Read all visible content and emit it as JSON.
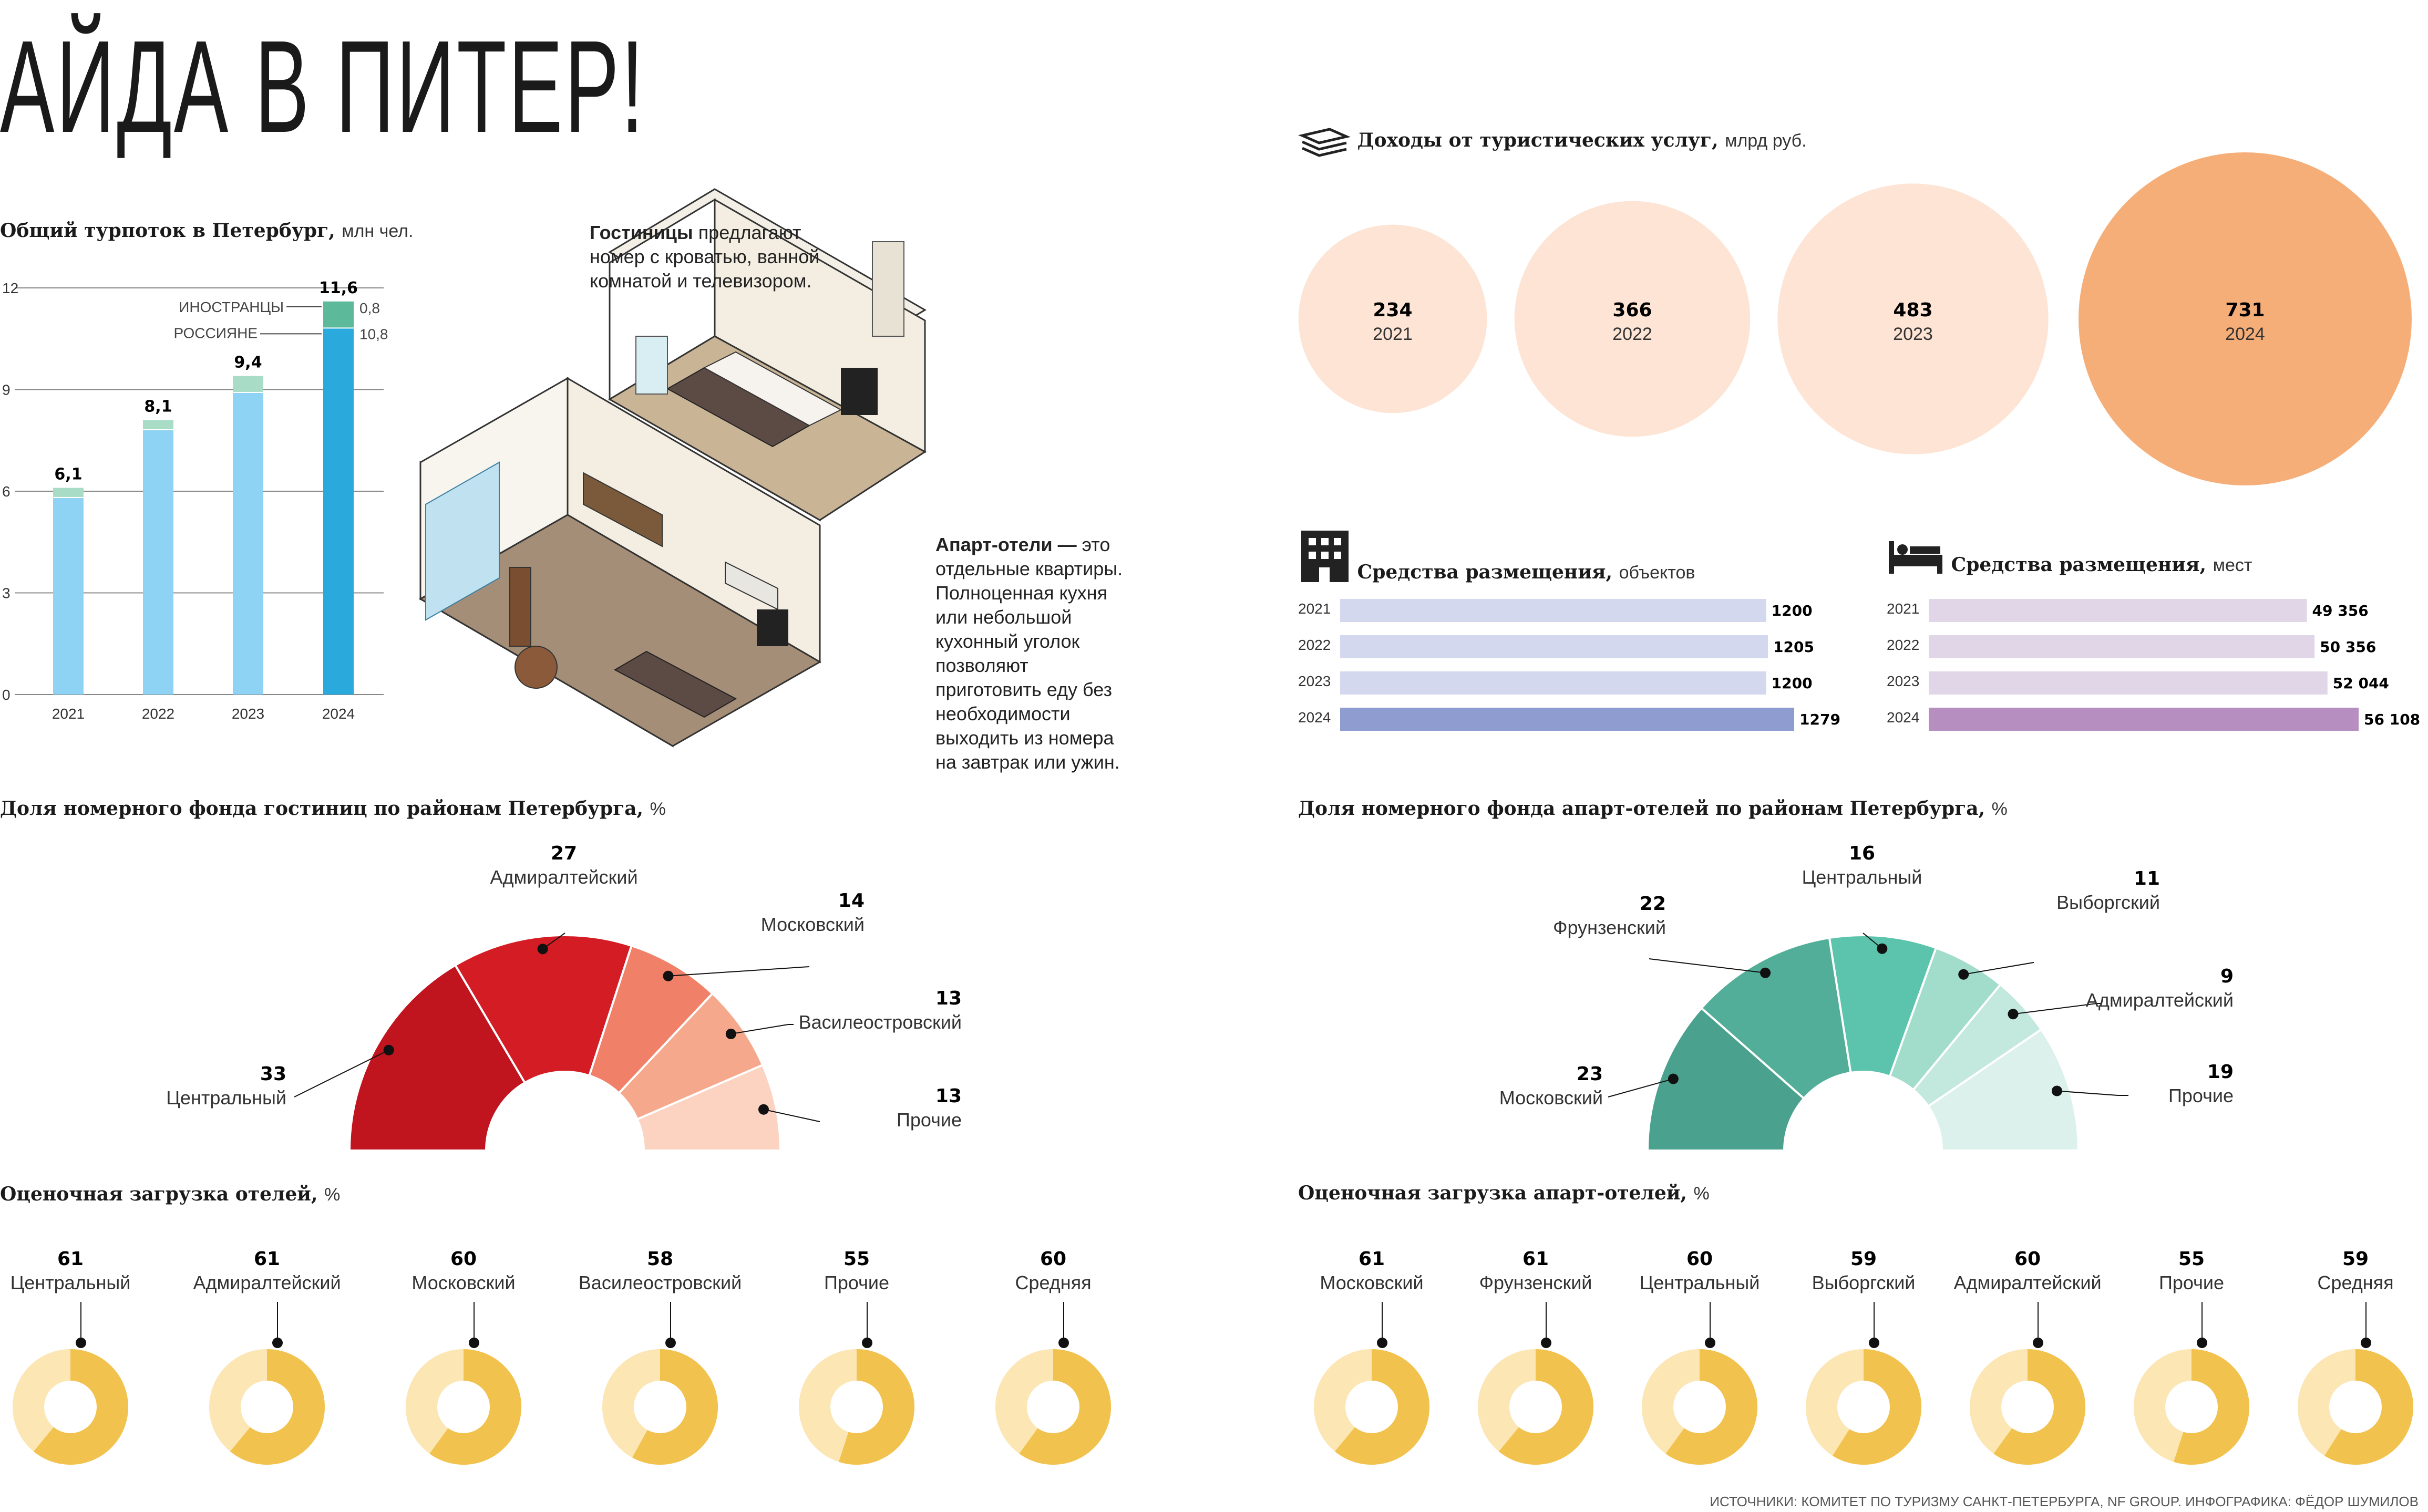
{
  "title": "АЙДА В ПИТЕР!",
  "turnover": {
    "title": "Общий турпоток в Петербург,",
    "unit": "млн чел.",
    "foreign_label": "ИНОСТРАНЦЫ",
    "russian_label": "РОССИЯНЕ",
    "foreign_value": "0,8",
    "russian_value": "10,8",
    "total_labels": [
      "6,1",
      "8,1",
      "9,4",
      "11,6"
    ]
  },
  "hotels_desc": {
    "title": "Гостиницы",
    "text": "предлагают номер с кроватью, ванной комнатой и телевизором."
  },
  "apart_desc": {
    "title": "Апарт-отели —",
    "text": "это отдельные квартиры. Полноценная кухня или небольшой кухонный уголок позволяют приготовить еду без необходимости выходить из номера на завтрак или ужин."
  },
  "income": {
    "title": "Доходы от туристических услуг,",
    "unit": "млрд руб.",
    "icon": "money-icon",
    "items": [
      {
        "value": "234",
        "year": "2021"
      },
      {
        "value": "366",
        "year": "2022"
      },
      {
        "value": "483",
        "year": "2023"
      },
      {
        "value": "731",
        "year": "2024"
      }
    ]
  },
  "accommodation_objects": {
    "title": "Средства размещения,",
    "unit": "объектов",
    "icon": "building-icon",
    "labels": [
      "1200",
      "1205",
      "1200",
      "1279"
    ]
  },
  "accommodation_places": {
    "title": "Средства размещения,",
    "unit": "мест",
    "icon": "bed-icon",
    "labels": [
      "49 356",
      "50 356",
      "52 044",
      "56 108"
    ]
  },
  "hotel_share": {
    "title": "Доля номерного фонда гостиниц по районам Петербурга,",
    "unit": "%"
  },
  "apart_share": {
    "title": "Доля номерного фонда апарт-отелей по районам Петербурга,",
    "unit": "%"
  },
  "hotel_load": {
    "title": "Оценочная загрузка отелей,",
    "unit": "%"
  },
  "apart_load": {
    "title": "Оценочная загрузка апарт-отелей,",
    "unit": "%"
  },
  "source": "ИСТОЧНИКИ: КОМИТЕТ ПО ТУРИЗМУ САНКТ-ПЕТЕРБУРГА, NF GROUP. ИНФОГРАФИКА: ФЁДОР ШУМИЛОВ",
  "colors": {
    "russian": "#8fd3f4",
    "russian_2024": "#2aa9dc",
    "foreign": "#a8dcc6",
    "foreign_2024": "#5cb99a",
    "hotel_reds": [
      "#c0141e",
      "#d41c24",
      "#f08068",
      "#f6a88c",
      "#fcd2c0"
    ],
    "apart_greens": [
      "#4aa28e",
      "#52ae98",
      "#5cc4ac",
      "#a2dccb",
      "#c3e8dd",
      "#dcf1eb"
    ],
    "load_fill": "#f2c24e",
    "load_rest": "#fbe6b4",
    "obj_bar": "#d3d8ee",
    "obj_bar_2024": "#8e9cd0",
    "place_bar": "#e0d6e8",
    "place_bar_2024": "#b68ec0"
  },
  "chart_data": [
    {
      "type": "bar",
      "title": "Общий турпоток в Петербург, млн чел.",
      "categories": [
        "2021",
        "2022",
        "2023",
        "2024"
      ],
      "series": [
        {
          "name": "РОССИЯНЕ",
          "values": [
            5.8,
            7.8,
            8.9,
            10.8
          ]
        },
        {
          "name": "ИНОСТРАННЫ",
          "values": [
            0.3,
            0.3,
            0.5,
            0.8
          ]
        }
      ],
      "totals": [
        6.1,
        8.1,
        9.4,
        11.6
      ],
      "yticks": [
        "0",
        "3",
        "6",
        "9",
        "12"
      ],
      "ylim": [
        0,
        12
      ],
      "grid": true
    },
    {
      "type": "bubble",
      "title": "Доходы от туристических услуг, млрд руб.",
      "categories": [
        "2021",
        "2022",
        "2023",
        "2024"
      ],
      "values": [
        234,
        366,
        483,
        731
      ]
    },
    {
      "type": "bar",
      "orientation": "horizontal",
      "title": "Средства размещения, объектов",
      "categories": [
        "2021",
        "2022",
        "2023",
        "2024"
      ],
      "values": [
        1200,
        1205,
        1200,
        1279
      ]
    },
    {
      "type": "bar",
      "orientation": "horizontal",
      "title": "Средства размещения, мест",
      "categories": [
        "2021",
        "2022",
        "2023",
        "2024"
      ],
      "values": [
        49356,
        50356,
        52044,
        56108
      ]
    },
    {
      "type": "pie",
      "shape": "half-donut",
      "title": "Доля номерного фонда гостиниц по районам Петербурга, %",
      "categories": [
        "Центральный",
        "Адмиралтейский",
        "Московский",
        "Василеостровский",
        "Прочие"
      ],
      "values": [
        33,
        27,
        14,
        13,
        13
      ]
    },
    {
      "type": "pie",
      "shape": "half-donut",
      "title": "Доля номерного фонда апарт-отелей по районам Петербурга, %",
      "categories": [
        "Московский",
        "Фрунзенский",
        "Центральный",
        "Выборгский",
        "Адмиралтейский",
        "Прочие"
      ],
      "values": [
        23,
        22,
        16,
        11,
        9,
        19
      ]
    },
    {
      "type": "pie",
      "shape": "donut",
      "title": "Оценочная загрузка отелей, %",
      "categories": [
        "Центральный",
        "Адмиралтейский",
        "Московский",
        "Василеостровский",
        "Прочие",
        "Средняя"
      ],
      "values": [
        61,
        61,
        60,
        58,
        55,
        60
      ]
    },
    {
      "type": "pie",
      "shape": "donut",
      "title": "Оценочная загрузка апарт-отелей, %",
      "categories": [
        "Московский",
        "Фрунзенский",
        "Центральный",
        "Выборгский",
        "Адмиралтейский",
        "Прочие",
        "Средняя"
      ],
      "values": [
        61,
        61,
        60,
        59,
        60,
        55,
        59
      ]
    }
  ]
}
